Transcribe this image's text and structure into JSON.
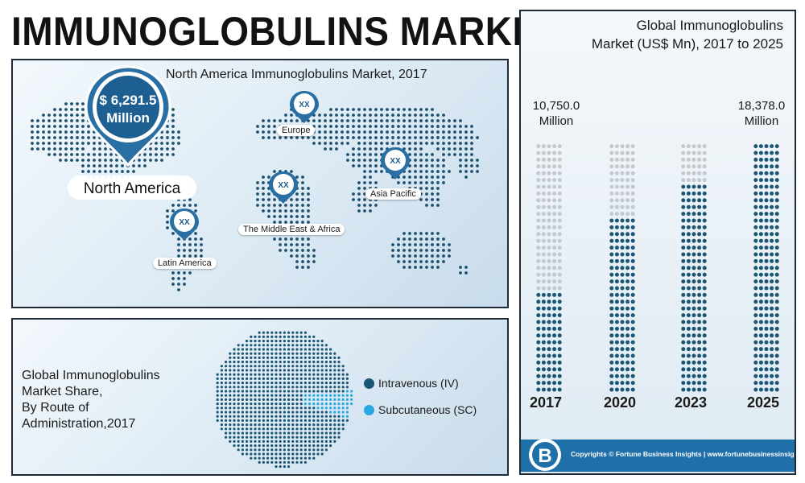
{
  "page": {
    "title": "IMMUNOGLOBULINS MARKET"
  },
  "map": {
    "title": "North America Immunoglobulins Market, 2017",
    "north_america": {
      "value_line1": "$ 6,291.5",
      "value_line2": "Million",
      "label": "North America"
    },
    "regions": [
      {
        "name": "Europe",
        "pin": "XX"
      },
      {
        "name": "Asia Pacific",
        "pin": "XX"
      },
      {
        "name": "The Middle East & Africa",
        "pin": "XX"
      },
      {
        "name": "Latin America",
        "pin": "XX"
      }
    ]
  },
  "share": {
    "title_lines": [
      "Global Immunoglobulins",
      "Market Share,",
      "By Route of",
      "Administration,2017"
    ],
    "legend": [
      {
        "label": "Intravenous (IV)",
        "color": "#1b5674"
      },
      {
        "label": "Subcutaneous (SC)",
        "color": "#2aa9e0"
      }
    ]
  },
  "bars": {
    "title_lines": [
      "Global Immunoglobulins",
      "Market (US$ Mn), 2017 to 2025"
    ],
    "first_label": [
      "10,750.0",
      "Million"
    ],
    "last_label": [
      "18,378.0",
      "Million"
    ],
    "filled_color": "#1b5674",
    "empty_color": "#c4c9cd"
  },
  "chart_data": [
    {
      "type": "bar",
      "title": "Global Immunoglobulins Market (US$ Mn), 2017 to 2025",
      "categories": [
        "2017",
        "2020",
        "2023",
        "2025"
      ],
      "values": [
        10750.0,
        12800,
        15600,
        18378.0
      ],
      "labeled_values": {
        "2017": "10,750.0 Million",
        "2025": "18,378.0 Million"
      },
      "ylim": [
        0,
        18378.0
      ],
      "grid": false
    },
    {
      "type": "pie",
      "title": "Global Immunoglobulins Market Share, By Route of Administration,2017",
      "categories": [
        "Intravenous (IV)",
        "Subcutaneous (SC)"
      ],
      "values": [
        88,
        12
      ],
      "colors": [
        "#1b5674",
        "#2aa9e0"
      ]
    }
  ],
  "footer": {
    "copyright": "Copyrights © Fortune Business Insights | www.fortunebusinessinsights.com",
    "logo_letter": "B"
  }
}
